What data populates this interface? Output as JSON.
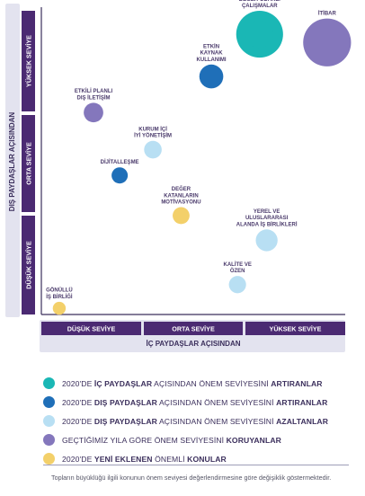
{
  "chart_data": {
    "type": "bubble",
    "x_axis": {
      "title": "İÇ PAYDAŞLAR AÇISINDAN",
      "bands": [
        "DÜŞÜK SEVİYE",
        "ORTA SEVİYE",
        "YÜKSEK SEVİYE"
      ],
      "range": [
        0,
        3
      ]
    },
    "y_axis": {
      "title": "DIŞ PAYDAŞLAR AÇISINDAN",
      "bands": [
        "DÜŞÜK SEVİYE",
        "ORTA SEVİYE",
        "YÜKSEK SEVİYE"
      ],
      "range": [
        0,
        3
      ]
    },
    "bubbles": [
      {
        "label": "DEĞER ODAKLI ÇALIŞMALAR",
        "x": 2.15,
        "y": 2.72,
        "size": 4.6,
        "category": "artiran_ic"
      },
      {
        "label": "İTİBAR",
        "x": 2.82,
        "y": 2.64,
        "size": 4.8,
        "category": "koruyan"
      },
      {
        "label": "ETKİN KAYNAK KULLANIMI",
        "x": 1.67,
        "y": 2.31,
        "size": 1.2,
        "category": "artiran_dis"
      },
      {
        "label": "ETKİLİ PLANLI DIŞ İLETİŞİM",
        "x": 0.5,
        "y": 1.96,
        "size": 0.8,
        "category": "koruyan"
      },
      {
        "label": "KURUM İÇİ İYİ YÖNETİŞİM",
        "x": 1.09,
        "y": 1.6,
        "size": 0.65,
        "category": "azaltan_dis"
      },
      {
        "label": "DİJİTALLEŞME",
        "x": 0.76,
        "y": 1.35,
        "size": 0.55,
        "category": "artiran_dis"
      },
      {
        "label": "DEĞER KATANLARIN MOTİVASYONU",
        "x": 1.37,
        "y": 0.96,
        "size": 0.6,
        "category": "yeni"
      },
      {
        "label": "YEREL VE ULUSLARARASI ALANDA İŞ BİRLİKLERİ",
        "x": 2.22,
        "y": 0.72,
        "size": 1.0,
        "category": "azaltan_dis"
      },
      {
        "label": "KALİTE VE ÖZEN",
        "x": 1.93,
        "y": 0.29,
        "size": 0.62,
        "category": "azaltan_dis"
      },
      {
        "label": "GÖNÜLLÜ İŞ BİRLİĞİ",
        "x": 0.16,
        "y": 0.06,
        "size": 0.35,
        "category": "yeni"
      }
    ],
    "inner_circle": {
      "x": 2.15,
      "y": 2.72,
      "size": 1.6,
      "category": "artiran_ic"
    }
  },
  "colors": {
    "artiran_ic": "#1ab7b5",
    "artiran_dis": "#1f6fb8",
    "azaltan_dis": "#b8dff3",
    "koruyan": "#8477bc",
    "yeni": "#f3d06a",
    "band_fill": "#4b2a72",
    "axis_track": "#e3e3ef",
    "axis_line": "#3b2f5c",
    "label_text": "#4a3a6b"
  },
  "legend": [
    {
      "category": "artiran_ic",
      "prefix": "2020'DE ",
      "bold1": "İÇ PAYDAŞLAR",
      "middle": " AÇISINDAN ÖNEM SEVİYESİNİ ",
      "bold2": "ARTIRANLAR"
    },
    {
      "category": "artiran_dis",
      "prefix": "2020'DE ",
      "bold1": "DIŞ PAYDAŞLAR",
      "middle": " AÇISINDAN ÖNEM SEVİYESİNİ ",
      "bold2": "ARTIRANLAR"
    },
    {
      "category": "azaltan_dis",
      "prefix": "2020'DE ",
      "bold1": "DIŞ PAYDAŞLAR",
      "middle": " AÇISINDAN ÖNEM SEVİYESİNİ ",
      "bold2": "AZALTANLAR"
    },
    {
      "category": "koruyan",
      "prefix": "GEÇTİĞİMİZ YILA GÖRE ÖNEM SEVİYESİNİ ",
      "bold1": "",
      "middle": "",
      "bold2": "KORUYANLAR"
    },
    {
      "category": "yeni",
      "prefix": "2020'DE ",
      "bold1": "YENİ EKLENEN",
      "middle": " ÖNEMLİ ",
      "bold2": "KONULAR"
    }
  ],
  "footnote": "Topların büyüklüğü ilgili konunun önem seviyesi değerlendirmesine göre değişiklik göstermektedir."
}
